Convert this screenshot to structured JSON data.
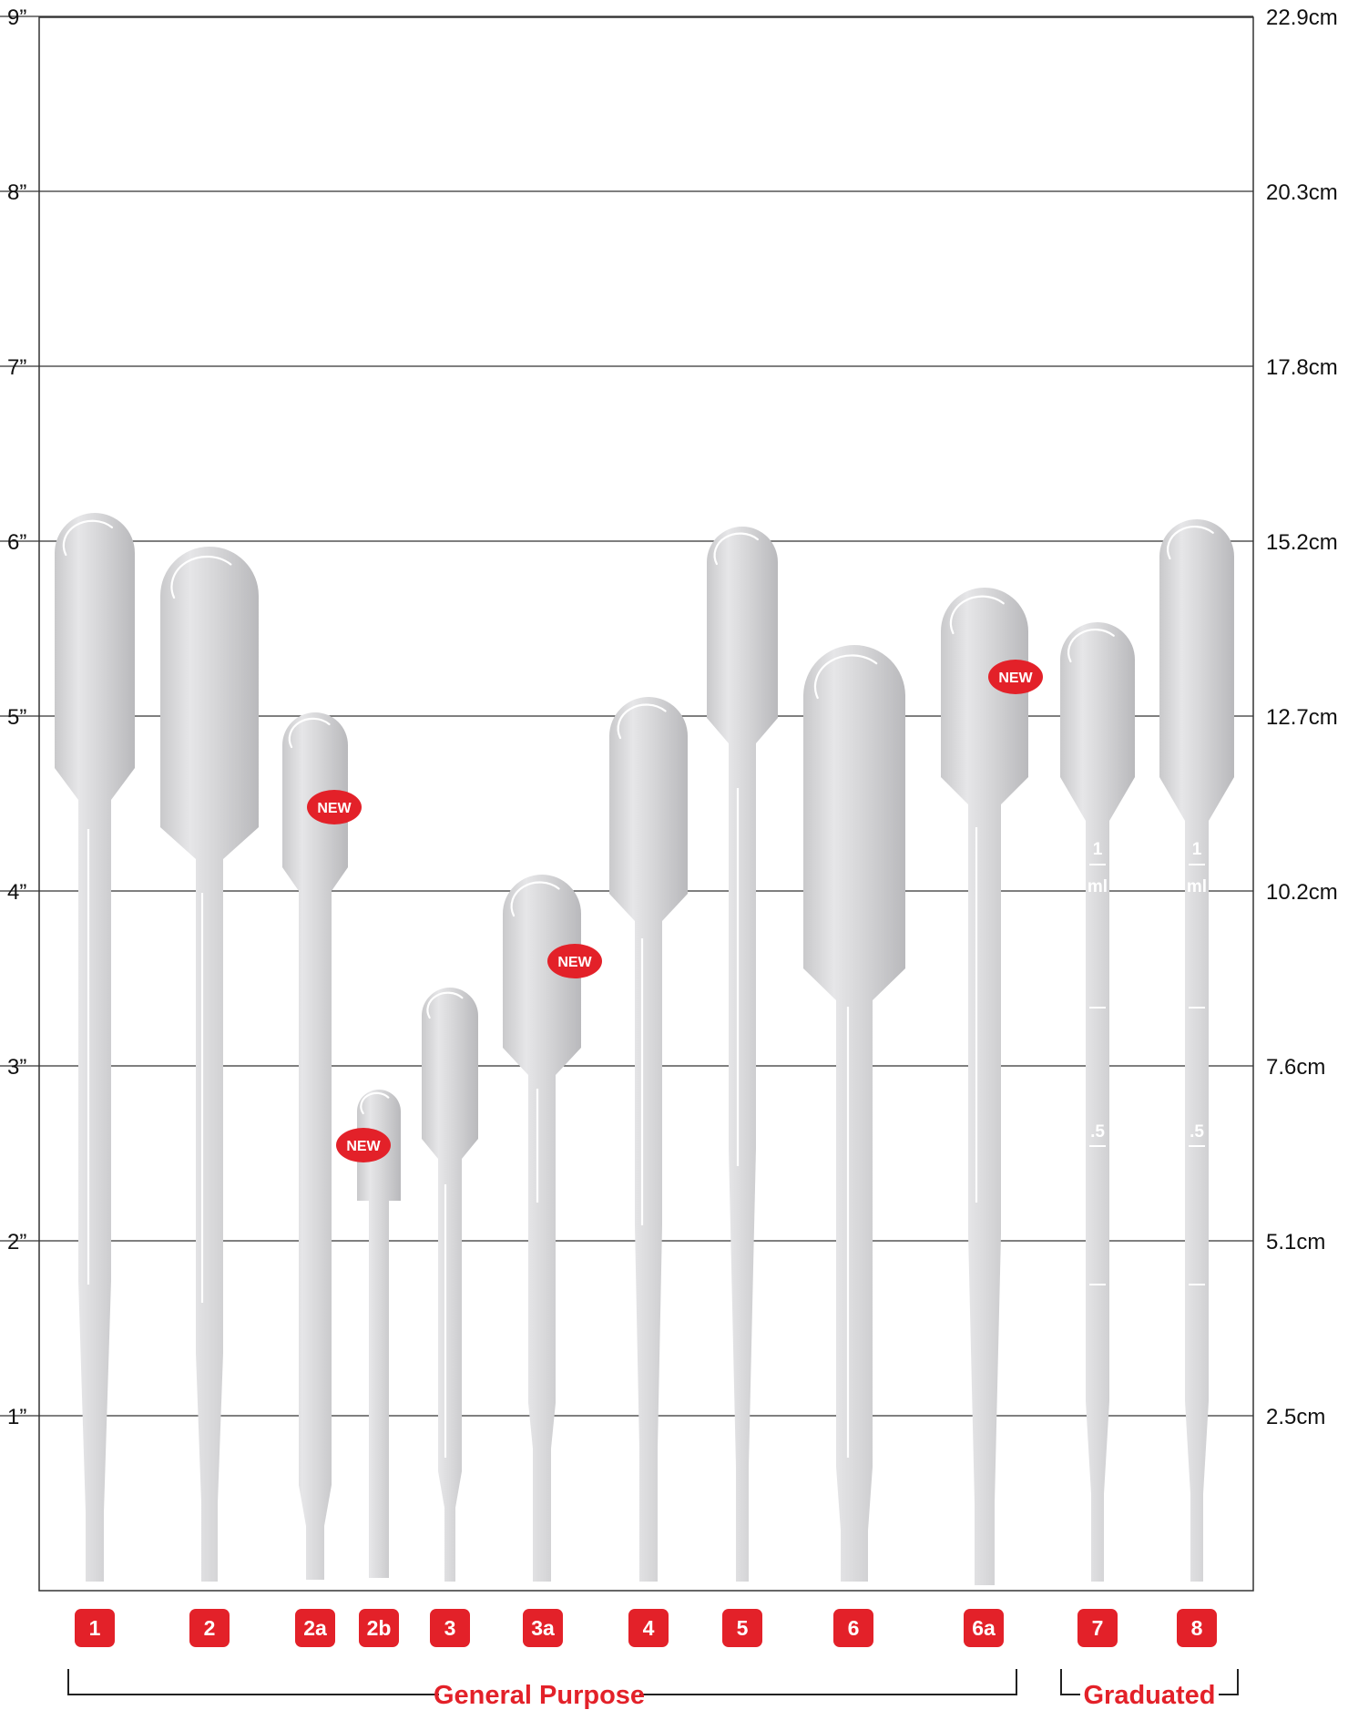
{
  "scale_left": {
    "unit_inch": "inch",
    "labels": [
      {
        "value": 9,
        "label": "9”"
      },
      {
        "value": 8,
        "label": "8”"
      },
      {
        "value": 7,
        "label": "7”"
      },
      {
        "value": 6,
        "label": "6”"
      },
      {
        "value": 5,
        "label": "5”"
      },
      {
        "value": 4,
        "label": "4”"
      },
      {
        "value": 3,
        "label": "3”"
      },
      {
        "value": 2,
        "label": "2”"
      },
      {
        "value": 1,
        "label": "1”"
      }
    ]
  },
  "scale_right": {
    "labels": [
      "22.9cm",
      "20.3cm",
      "17.8cm",
      "15.2cm",
      "12.7cm",
      "10.2cm",
      "7.6cm",
      "5.1cm",
      "2.5cm"
    ]
  },
  "pipettes": [
    {
      "id": "1",
      "badge": "1",
      "new": false,
      "graduated": false
    },
    {
      "id": "2",
      "badge": "2",
      "new": false,
      "graduated": false
    },
    {
      "id": "2a",
      "badge": "2a",
      "new": true,
      "graduated": false
    },
    {
      "id": "2b",
      "badge": "2b",
      "new": true,
      "graduated": false
    },
    {
      "id": "3",
      "badge": "3",
      "new": false,
      "graduated": false
    },
    {
      "id": "3a",
      "badge": "3a",
      "new": true,
      "graduated": false
    },
    {
      "id": "4",
      "badge": "4",
      "new": false,
      "graduated": false
    },
    {
      "id": "5",
      "badge": "5",
      "new": false,
      "graduated": false
    },
    {
      "id": "6",
      "badge": "6",
      "new": false,
      "graduated": false
    },
    {
      "id": "6a",
      "badge": "6a",
      "new": true,
      "graduated": false
    },
    {
      "id": "7",
      "badge": "7",
      "new": false,
      "graduated": true
    },
    {
      "id": "8",
      "badge": "8",
      "new": false,
      "graduated": true
    }
  ],
  "new_label": "NEW",
  "graduation_labels": {
    "one": "1",
    "ml": "ml",
    "half": ".5"
  },
  "groups": [
    {
      "name": "General Purpose",
      "members": [
        "1",
        "2",
        "2a",
        "2b",
        "3",
        "3a",
        "4",
        "5",
        "6",
        "6a"
      ]
    },
    {
      "name": "Graduated",
      "members": [
        "7",
        "8"
      ]
    }
  ],
  "colors": {
    "badge": "#e32129",
    "group_text": "#e32129",
    "pipette_light": "#eeeeef",
    "pipette_dark": "#c3c3c5",
    "grid": "#333333"
  }
}
